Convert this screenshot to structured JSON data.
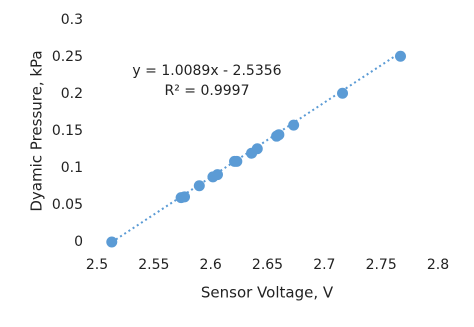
{
  "chart_data": {
    "type": "scatter",
    "x": [
      2.513,
      2.574,
      2.577,
      2.59,
      2.602,
      2.606,
      2.621,
      2.623,
      2.636,
      2.641,
      2.658,
      2.66,
      2.673,
      2.716,
      2.767
    ],
    "values": [
      0,
      0.06,
      0.061,
      0.076,
      0.088,
      0.091,
      0.109,
      0.109,
      0.12,
      0.126,
      0.143,
      0.145,
      0.158,
      0.201,
      0.251
    ],
    "color": "#5b9bd5",
    "xlabel": "Sensor Voltage, V",
    "ylabel": "Dyamic Pressure, kPa",
    "xlim": [
      2.5,
      2.8
    ],
    "xticks": [
      2.5,
      2.55,
      2.6,
      2.65,
      2.7,
      2.75,
      2.8
    ],
    "ylim": [
      0,
      0.3
    ],
    "yticks": [
      0,
      0.05,
      0.1,
      0.15,
      0.2,
      0.25,
      0.3
    ],
    "grid": false,
    "trendline": {
      "slope": 1.0089,
      "intercept": -2.5356,
      "equation": "y = 1.0089x - 2.5356",
      "r_squared": "R² = 0.9997"
    }
  }
}
